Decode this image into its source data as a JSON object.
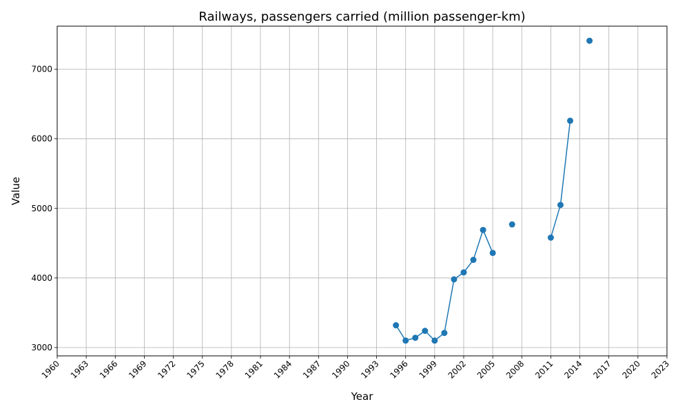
{
  "chart_data": {
    "type": "line",
    "title": "Railways, passengers carried (million passenger-km)",
    "xlabel": "Year",
    "ylabel": "Value",
    "xlim": [
      1960,
      2023
    ],
    "ylim": [
      2880,
      7620
    ],
    "x_ticks": [
      1960,
      1963,
      1966,
      1969,
      1972,
      1975,
      1978,
      1981,
      1984,
      1987,
      1990,
      1993,
      1996,
      1999,
      2002,
      2005,
      2008,
      2011,
      2014,
      2017,
      2020,
      2023
    ],
    "y_ticks": [
      3000,
      4000,
      5000,
      6000,
      7000
    ],
    "grid": true,
    "series": [
      {
        "color": "#1f77b4",
        "marker": "circle",
        "x": [
          1995,
          1996,
          1997,
          1998,
          1999,
          2000,
          2001,
          2002,
          2003,
          2004,
          2005,
          2006,
          2007,
          2008,
          2009,
          2010,
          2011,
          2012,
          2013,
          2014,
          2015
        ],
        "y": [
          3320,
          3100,
          3140,
          3240,
          3100,
          3210,
          3980,
          4080,
          4260,
          4690,
          4360,
          null,
          4770,
          null,
          null,
          null,
          4580,
          5050,
          6260,
          null,
          7410
        ]
      }
    ]
  }
}
